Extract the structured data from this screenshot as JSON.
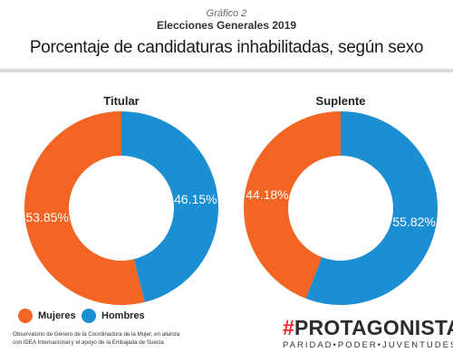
{
  "header": {
    "kicker": "Gráfico 2",
    "subtitle": "Elecciones Generales 2019",
    "title": "Porcentaje de candidaturas inhabilitadas, según sexo"
  },
  "colors": {
    "mujeres": "#f26522",
    "hombres": "#1b8fd2"
  },
  "chart_data": [
    {
      "type": "pie",
      "title": "Titular",
      "labels": [
        "Mujeres",
        "Hombres"
      ],
      "values": [
        53.85,
        46.15
      ],
      "value_labels": [
        "53.85%",
        "46.15%"
      ]
    },
    {
      "type": "pie",
      "title": "Suplente",
      "labels": [
        "Mujeres",
        "Hombres"
      ],
      "values": [
        44.18,
        55.82
      ],
      "value_labels": [
        "44.18%",
        "55.82%"
      ]
    }
  ],
  "legend": {
    "mujeres": "Mujeres",
    "hombres": "Hombres"
  },
  "credit": {
    "line1": "Observatorio de Género de la Coordinadora de la Mujer, en alianza",
    "line2": "con IDEA Internacional y el apoyo de la Embajada de Suecia"
  },
  "brand": {
    "hash": "#",
    "name": "PROTAGONISTAS",
    "tagline": "PARIDAD•PODER•JUVENTUDES"
  }
}
